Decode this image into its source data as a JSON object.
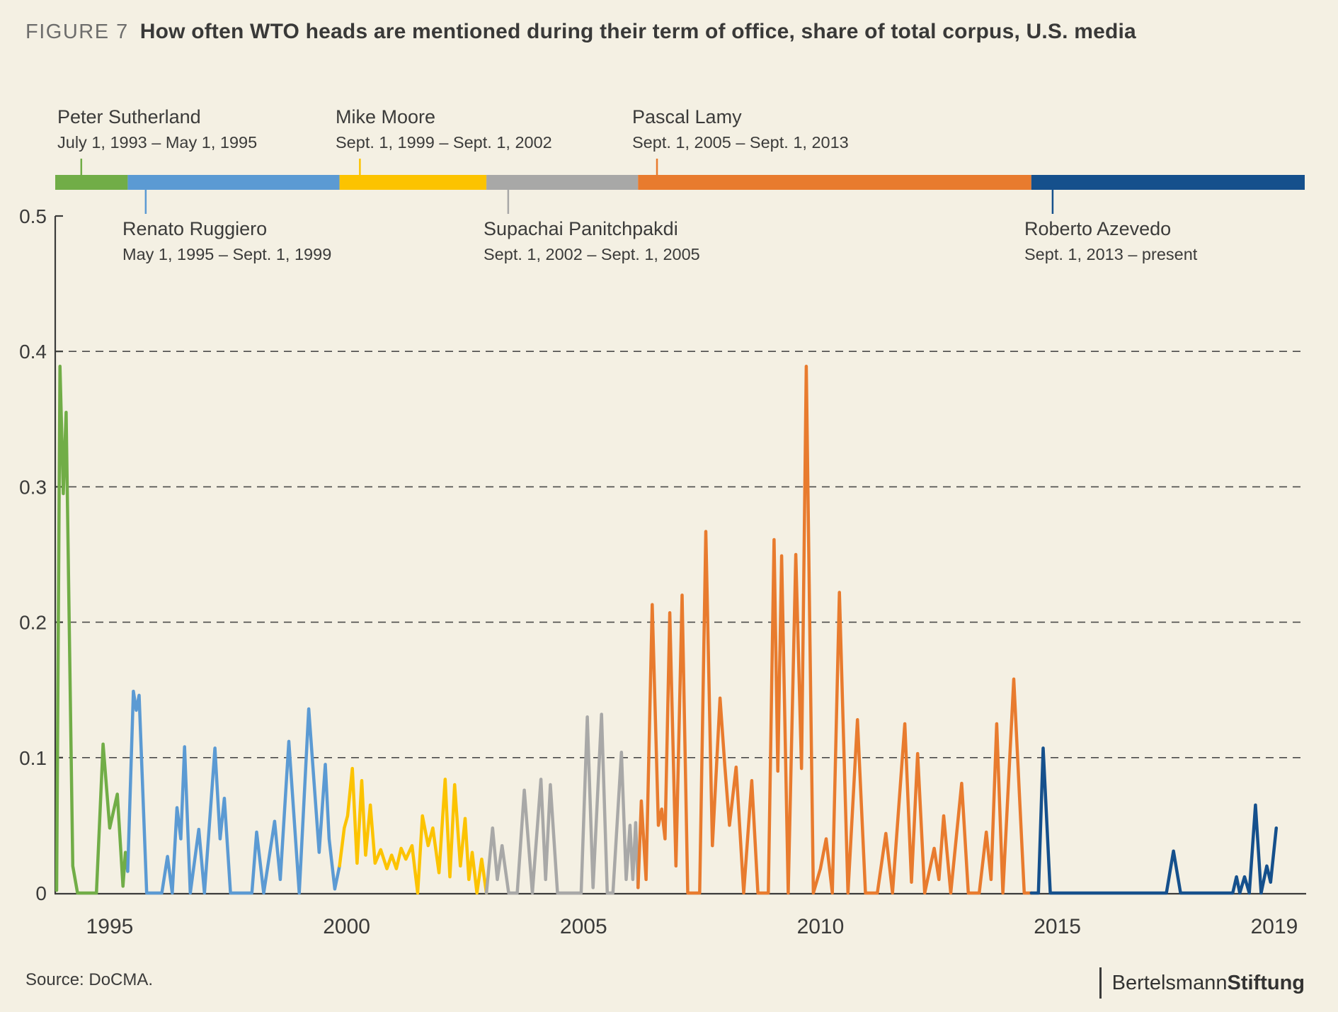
{
  "title": {
    "figure_label": "FIGURE 7",
    "text": "How often WTO heads are mentioned during their term of office, share of total corpus, U.S. media"
  },
  "source": {
    "label": "Source: DoCMA."
  },
  "logo": {
    "divider": "|",
    "part1": "Bertelsmann",
    "part2": "Stiftung"
  },
  "colors": {
    "background": "#f4f0e3",
    "text": "#3b3b3a",
    "figure_label": "#6d6d6c",
    "axis": "#3b3b3a",
    "gridline": "#4b4b4a",
    "sutherland_green": "#71ad47",
    "ruggiero_blue": "#5b9ad3",
    "moore_yellow": "#fcc300",
    "supachai_gray": "#a8a8a7",
    "lamy_orange": "#e87b2e",
    "azevedo_darkblue": "#15508c"
  },
  "timeline": {
    "heads": [
      {
        "name": "Peter Sutherland",
        "dates": "July 1, 1993 – May 1, 1995",
        "color": "#71ad47",
        "start_year": 1993.85,
        "end_year": 1995.38
      },
      {
        "name": "Renato Ruggiero",
        "dates": "May 1, 1995 – Sept. 1, 1999",
        "color": "#5b9ad3",
        "start_year": 1995.38,
        "end_year": 1999.85
      },
      {
        "name": "Mike Moore",
        "dates": "Sept.  1, 1999 – Sept. 1, 2002",
        "color": "#fcc300",
        "start_year": 1999.85,
        "end_year": 2002.95
      },
      {
        "name": "Supachai Panitchpakdi",
        "dates": "Sept.  1, 2002 – Sept. 1, 2005",
        "color": "#a8a8a7",
        "start_year": 2002.95,
        "end_year": 2006.15
      },
      {
        "name": "Pascal Lamy",
        "dates": "Sept.  1, 2005 – Sept. 1, 2013",
        "color": "#e87b2e",
        "start_year": 2006.15,
        "end_year": 2014.45
      },
      {
        "name": "Roberto Azevedo",
        "dates": "Sept.  1, 2013 – present",
        "color": "#15508c",
        "start_year": 2014.45,
        "end_year": 2020.22
      }
    ]
  },
  "chart_data": {
    "type": "line",
    "title": "How often WTO heads are mentioned during their term of office, share of total corpus, U.S. media",
    "xlabel": "",
    "ylabel": "share of total corpus",
    "xlim": [
      1993.85,
      2020.25
    ],
    "ylim": [
      0,
      0.5
    ],
    "x_ticks": [
      1995,
      2000,
      2005,
      2010,
      2015,
      2019
    ],
    "y_ticks": [
      0,
      0.1,
      0.2,
      0.3,
      0.4,
      0.5
    ],
    "grid": "horizontal dashed at 0.1-0.4",
    "legend_position": "timeline bar above chart",
    "series": [
      {
        "name": "Peter Sutherland",
        "color": "#71ad47",
        "points": [
          [
            1993.88,
            0.002
          ],
          [
            1993.95,
            0.389
          ],
          [
            1994.02,
            0.295
          ],
          [
            1994.08,
            0.355
          ],
          [
            1994.22,
            0.02
          ],
          [
            1994.32,
            0.0
          ],
          [
            1994.72,
            0.0
          ],
          [
            1994.86,
            0.11
          ],
          [
            1995.0,
            0.048
          ],
          [
            1995.16,
            0.073
          ],
          [
            1995.28,
            0.005
          ],
          [
            1995.33,
            0.03
          ],
          [
            1995.38,
            0.016
          ]
        ]
      },
      {
        "name": "Renato Ruggiero",
        "color": "#5b9ad3",
        "points": [
          [
            1995.38,
            0.016
          ],
          [
            1995.5,
            0.149
          ],
          [
            1995.56,
            0.135
          ],
          [
            1995.62,
            0.146
          ],
          [
            1995.78,
            0.0
          ],
          [
            1996.1,
            0.0
          ],
          [
            1996.22,
            0.027
          ],
          [
            1996.32,
            0.0
          ],
          [
            1996.42,
            0.063
          ],
          [
            1996.5,
            0.04
          ],
          [
            1996.58,
            0.108
          ],
          [
            1996.7,
            0.0
          ],
          [
            1996.88,
            0.047
          ],
          [
            1997.0,
            0.0
          ],
          [
            1997.22,
            0.107
          ],
          [
            1997.33,
            0.04
          ],
          [
            1997.42,
            0.07
          ],
          [
            1997.55,
            0.0
          ],
          [
            1998.0,
            0.0
          ],
          [
            1998.1,
            0.045
          ],
          [
            1998.25,
            0.0
          ],
          [
            1998.48,
            0.053
          ],
          [
            1998.6,
            0.01
          ],
          [
            1998.78,
            0.112
          ],
          [
            1999.0,
            0.0
          ],
          [
            1999.2,
            0.136
          ],
          [
            1999.42,
            0.03
          ],
          [
            1999.55,
            0.095
          ],
          [
            1999.63,
            0.04
          ],
          [
            1999.75,
            0.003
          ],
          [
            1999.85,
            0.02
          ]
        ]
      },
      {
        "name": "Mike Moore",
        "color": "#fcc300",
        "points": [
          [
            1999.85,
            0.02
          ],
          [
            1999.95,
            0.048
          ],
          [
            2000.02,
            0.057
          ],
          [
            2000.12,
            0.092
          ],
          [
            2000.22,
            0.022
          ],
          [
            2000.32,
            0.083
          ],
          [
            2000.4,
            0.028
          ],
          [
            2000.5,
            0.065
          ],
          [
            2000.6,
            0.022
          ],
          [
            2000.72,
            0.032
          ],
          [
            2000.85,
            0.018
          ],
          [
            2000.95,
            0.028
          ],
          [
            2001.05,
            0.018
          ],
          [
            2001.15,
            0.033
          ],
          [
            2001.25,
            0.025
          ],
          [
            2001.38,
            0.035
          ],
          [
            2001.5,
            0.0
          ],
          [
            2001.6,
            0.057
          ],
          [
            2001.72,
            0.035
          ],
          [
            2001.82,
            0.048
          ],
          [
            2001.95,
            0.015
          ],
          [
            2002.08,
            0.084
          ],
          [
            2002.18,
            0.012
          ],
          [
            2002.28,
            0.08
          ],
          [
            2002.4,
            0.02
          ],
          [
            2002.5,
            0.055
          ],
          [
            2002.58,
            0.01
          ],
          [
            2002.65,
            0.03
          ],
          [
            2002.75,
            0.0
          ],
          [
            2002.85,
            0.025
          ],
          [
            2002.95,
            0.0
          ]
        ]
      },
      {
        "name": "Supachai Panitchpakdi",
        "color": "#a8a8a7",
        "points": [
          [
            2002.95,
            0.0
          ],
          [
            2003.08,
            0.048
          ],
          [
            2003.18,
            0.01
          ],
          [
            2003.28,
            0.035
          ],
          [
            2003.42,
            0.0
          ],
          [
            2003.6,
            0.0
          ],
          [
            2003.75,
            0.076
          ],
          [
            2003.92,
            0.0
          ],
          [
            2004.1,
            0.084
          ],
          [
            2004.2,
            0.01
          ],
          [
            2004.3,
            0.08
          ],
          [
            2004.45,
            0.0
          ],
          [
            2004.95,
            0.0
          ],
          [
            2005.08,
            0.13
          ],
          [
            2005.2,
            0.004
          ],
          [
            2005.38,
            0.132
          ],
          [
            2005.5,
            0.0
          ],
          [
            2005.62,
            0.0
          ],
          [
            2005.8,
            0.104
          ],
          [
            2005.9,
            0.01
          ],
          [
            2005.98,
            0.05
          ],
          [
            2006.04,
            0.01
          ],
          [
            2006.1,
            0.052
          ],
          [
            2006.15,
            0.004
          ]
        ]
      },
      {
        "name": "Pascal Lamy",
        "color": "#e87b2e",
        "points": [
          [
            2006.15,
            0.004
          ],
          [
            2006.22,
            0.068
          ],
          [
            2006.32,
            0.01
          ],
          [
            2006.45,
            0.213
          ],
          [
            2006.58,
            0.05
          ],
          [
            2006.65,
            0.062
          ],
          [
            2006.72,
            0.04
          ],
          [
            2006.82,
            0.207
          ],
          [
            2006.95,
            0.02
          ],
          [
            2007.08,
            0.22
          ],
          [
            2007.2,
            0.0
          ],
          [
            2007.45,
            0.0
          ],
          [
            2007.58,
            0.267
          ],
          [
            2007.72,
            0.035
          ],
          [
            2007.88,
            0.144
          ],
          [
            2007.98,
            0.095
          ],
          [
            2008.08,
            0.05
          ],
          [
            2008.22,
            0.093
          ],
          [
            2008.38,
            0.0
          ],
          [
            2008.55,
            0.083
          ],
          [
            2008.68,
            0.0
          ],
          [
            2008.9,
            0.0
          ],
          [
            2009.02,
            0.261
          ],
          [
            2009.1,
            0.09
          ],
          [
            2009.18,
            0.249
          ],
          [
            2009.32,
            0.0
          ],
          [
            2009.48,
            0.25
          ],
          [
            2009.6,
            0.092
          ],
          [
            2009.7,
            0.389
          ],
          [
            2009.85,
            0.0
          ],
          [
            2010.0,
            0.018
          ],
          [
            2010.12,
            0.04
          ],
          [
            2010.25,
            0.0
          ],
          [
            2010.4,
            0.222
          ],
          [
            2010.58,
            0.0
          ],
          [
            2010.78,
            0.128
          ],
          [
            2010.95,
            0.0
          ],
          [
            2011.2,
            0.0
          ],
          [
            2011.38,
            0.044
          ],
          [
            2011.52,
            0.0
          ],
          [
            2011.78,
            0.125
          ],
          [
            2011.92,
            0.008
          ],
          [
            2012.05,
            0.103
          ],
          [
            2012.2,
            0.0
          ],
          [
            2012.4,
            0.033
          ],
          [
            2012.5,
            0.01
          ],
          [
            2012.6,
            0.057
          ],
          [
            2012.75,
            0.0
          ],
          [
            2012.98,
            0.081
          ],
          [
            2013.12,
            0.0
          ],
          [
            2013.35,
            0.0
          ],
          [
            2013.5,
            0.045
          ],
          [
            2013.6,
            0.01
          ],
          [
            2013.72,
            0.125
          ],
          [
            2013.85,
            0.0
          ],
          [
            2014.08,
            0.158
          ],
          [
            2014.3,
            0.0
          ],
          [
            2014.45,
            0.0
          ]
        ]
      },
      {
        "name": "Roberto Azevedo",
        "color": "#15508c",
        "points": [
          [
            2014.45,
            0.0
          ],
          [
            2014.6,
            0.0
          ],
          [
            2014.7,
            0.107
          ],
          [
            2014.85,
            0.0
          ],
          [
            2017.3,
            0.0
          ],
          [
            2017.45,
            0.031
          ],
          [
            2017.6,
            0.0
          ],
          [
            2018.7,
            0.0
          ],
          [
            2018.78,
            0.012
          ],
          [
            2018.85,
            0.0
          ],
          [
            2018.95,
            0.012
          ],
          [
            2019.05,
            0.0
          ],
          [
            2019.18,
            0.065
          ],
          [
            2019.3,
            0.0
          ],
          [
            2019.42,
            0.02
          ],
          [
            2019.5,
            0.008
          ],
          [
            2019.62,
            0.048
          ]
        ]
      }
    ]
  }
}
